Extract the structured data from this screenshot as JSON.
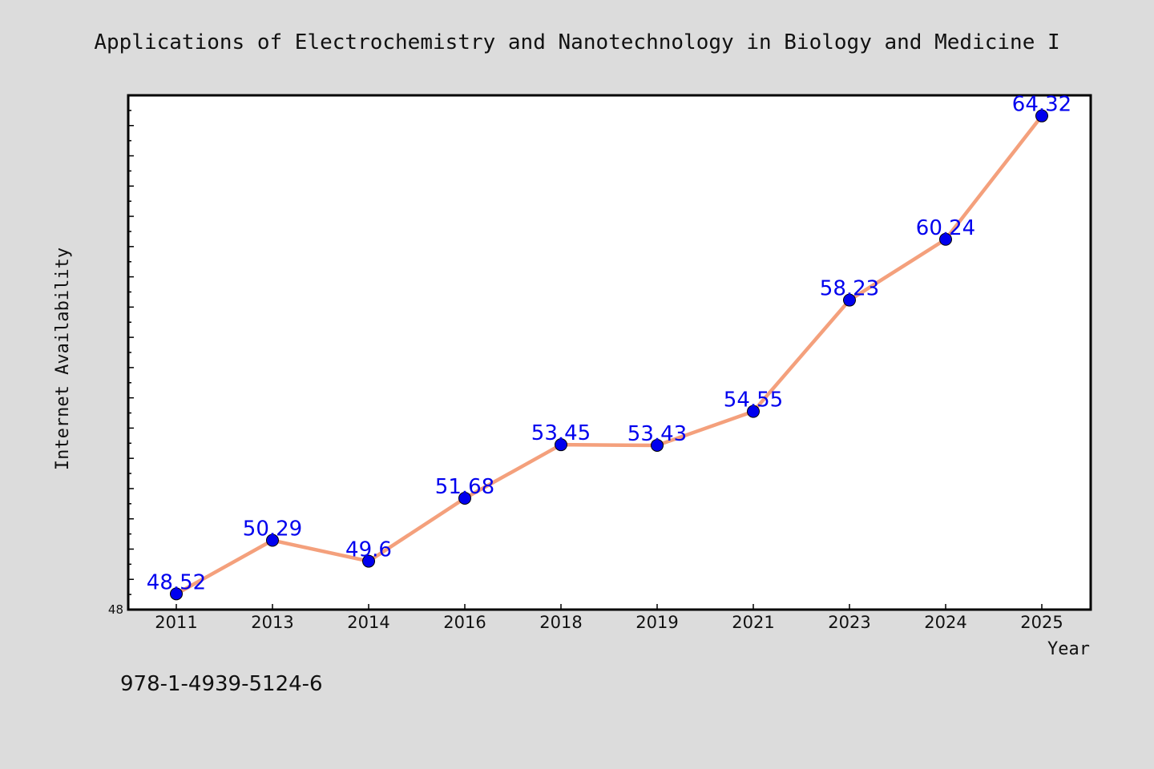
{
  "chart_data": {
    "type": "line",
    "title": "Applications of Electrochemistry and Nanotechnology in Biology and Medicine I",
    "xlabel": "Year",
    "ylabel": "Internet Availability",
    "categories": [
      "2011",
      "2013",
      "2014",
      "2016",
      "2018",
      "2019",
      "2021",
      "2023",
      "2024",
      "2025"
    ],
    "series": [
      {
        "values": [
          48.52,
          50.29,
          49.6,
          51.68,
          53.45,
          53.43,
          54.55,
          58.23,
          60.24,
          64.32
        ],
        "labels": [
          "48.52",
          "50.29",
          "49.6",
          "51.68",
          "53.45",
          "53.43",
          "54.55",
          "58.23",
          "60.24",
          "64.32"
        ],
        "line_color": "#f4a07c",
        "marker_color": "#0000ee"
      }
    ],
    "ylim": [
      48,
      65
    ],
    "y_tick_labels": [
      {
        "value": 48,
        "label": "48"
      }
    ],
    "grid": false,
    "legend": "none"
  },
  "footer": {
    "isbn": "978-1-4939-5124-6"
  },
  "colors": {
    "background": "#dcdcdc",
    "plot_background": "#ffffff",
    "data_label": "#0000ee"
  }
}
